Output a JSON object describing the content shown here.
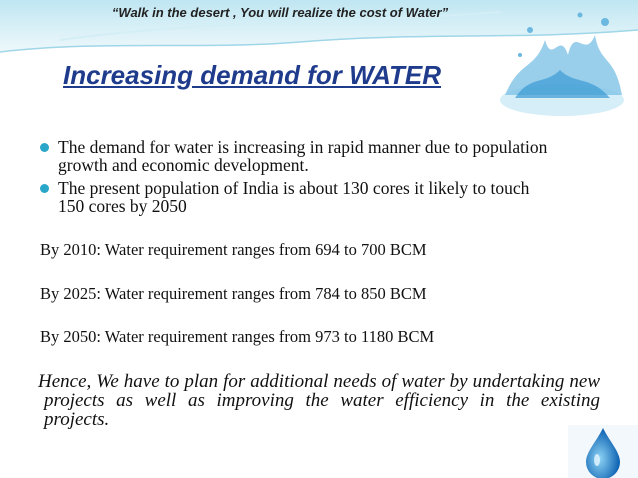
{
  "slide": {
    "quote": "“Walk in the desert , You will realize the cost of Water”",
    "title": "Increasing demand for WATER",
    "bullets": [
      "The demand for water is increasing in rapid manner due to population growth and economic development.",
      "The present population of India is about 130 cores it likely to touch 150 cores by 2050"
    ],
    "lines": [
      "By 2010: Water requirement ranges from 694 to 700 BCM",
      "By 2025: Water requirement ranges from 784 to 850 BCM",
      "By 2050: Water requirement ranges from 973 to 1180 BCM"
    ],
    "conclusion": "Hence, We have to plan for additional needs of water by undertaking new projects as well as improving the water efficiency in the existing projects."
  }
}
